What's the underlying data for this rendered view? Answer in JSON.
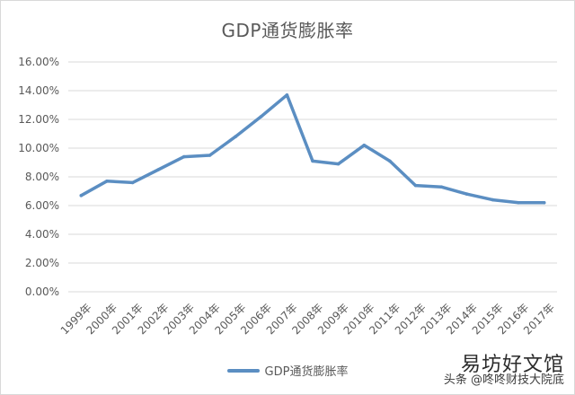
{
  "chart_data": {
    "type": "line",
    "title": "GDP通货膨胀率",
    "xlabel": "",
    "ylabel": "",
    "categories": [
      "1999年",
      "2000年",
      "2001年",
      "2002年",
      "2003年",
      "2004年",
      "2005年",
      "2006年",
      "2007年",
      "2008年",
      "2009年",
      "2010年",
      "2011年",
      "2012年",
      "2013年",
      "2014年",
      "2015年",
      "2016年",
      "2017年"
    ],
    "series": [
      {
        "name": "GDP通货膨胀率",
        "values": [
          6.7,
          7.7,
          7.6,
          8.5,
          9.4,
          9.5,
          10.8,
          12.2,
          13.7,
          9.1,
          8.9,
          10.2,
          9.1,
          7.4,
          7.3,
          6.8,
          6.4,
          6.2,
          6.2
        ]
      }
    ],
    "y_ticks": [
      "0.00%",
      "2.00%",
      "4.00%",
      "6.00%",
      "8.00%",
      "10.00%",
      "12.00%",
      "14.00%",
      "16.00%"
    ],
    "ylim": [
      0,
      16
    ],
    "grid": "horizontal",
    "legend_position": "bottom",
    "line_color": "#5b8ec2"
  },
  "watermark": {
    "line1": "易坊好文馆",
    "line2": "头条 @咚咚财技大院底"
  }
}
